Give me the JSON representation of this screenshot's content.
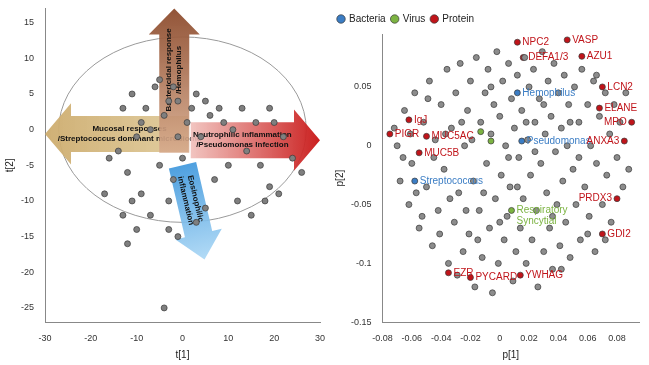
{
  "chart_data": [
    {
      "type": "scatter",
      "x_label": "t[1]",
      "y_label": "t[2]",
      "xlim": [
        -30,
        30
      ],
      "xticks": [
        -30,
        -20,
        -10,
        0,
        10,
        20,
        30
      ],
      "ylim": [
        -27,
        17
      ],
      "yticks": [
        -25,
        -20,
        -15,
        -10,
        -5,
        0,
        5,
        10,
        15
      ],
      "grid": false,
      "ellipse": {
        "center": [
          0,
          0
        ],
        "radii": [
          27,
          13
        ]
      },
      "annotations": [
        {
          "text": [
            "Mucosal responses",
            "/Streptococcus dominant microbiome"
          ]
        },
        {
          "text": [
            "Bactericidal response",
            "/Hemophilus"
          ]
        },
        {
          "text": [
            "Neutrophilic inflammation",
            "/Pseudomonas Infection"
          ]
        },
        {
          "text": [
            "Eosinophilic",
            "inflammation"
          ]
        }
      ],
      "series": [
        {
          "color": "#7f7f7f",
          "points": [
            [
              -6,
              6
            ],
            [
              -5,
              7
            ],
            [
              -2,
              6
            ],
            [
              -1,
              4
            ],
            [
              -3,
              4
            ],
            [
              2,
              3
            ],
            [
              -8,
              3
            ],
            [
              -11,
              5
            ],
            [
              -13,
              3
            ],
            [
              -9,
              1
            ],
            [
              -7,
              0
            ],
            [
              -4,
              2
            ],
            [
              3,
              5
            ],
            [
              5,
              4
            ],
            [
              1,
              1
            ],
            [
              -1,
              -1
            ],
            [
              4,
              -1
            ],
            [
              6,
              2
            ],
            [
              8,
              3
            ],
            [
              9,
              1
            ],
            [
              11,
              0
            ],
            [
              13,
              3
            ],
            [
              16,
              1
            ],
            [
              19,
              3
            ],
            [
              20,
              1
            ],
            [
              22,
              -1
            ],
            [
              24,
              -4
            ],
            [
              26,
              -6
            ],
            [
              19,
              -8
            ],
            [
              17,
              -5
            ],
            [
              14,
              -3
            ],
            [
              10,
              -5
            ],
            [
              7,
              -7
            ],
            [
              12,
              -10
            ],
            [
              -10,
              -1
            ],
            [
              -14,
              -3
            ],
            [
              -12,
              -6
            ],
            [
              -16,
              -4
            ],
            [
              -17,
              -9
            ],
            [
              -9,
              -9
            ],
            [
              -7,
              -12
            ],
            [
              -3,
              -10
            ],
            [
              -2,
              -7
            ],
            [
              -5,
              -5
            ],
            [
              0,
              -4
            ],
            [
              5,
              -11
            ],
            [
              3,
              -13
            ],
            [
              -1,
              -15
            ],
            [
              -3,
              -14
            ],
            [
              -10,
              -14
            ],
            [
              -12,
              -16
            ],
            [
              -4,
              -25
            ],
            [
              18,
              -10
            ],
            [
              21,
              -9
            ],
            [
              15,
              -12
            ],
            [
              -13,
              -12
            ],
            [
              -11,
              -10
            ]
          ]
        }
      ]
    },
    {
      "type": "scatter",
      "x_label": "p[1]",
      "y_label": "p[2]",
      "xlim": [
        -0.08,
        0.095
      ],
      "xticks": [
        -0.08,
        -0.06,
        -0.04,
        -0.02,
        0,
        0.02,
        0.04,
        0.06,
        0.08
      ],
      "ylim": [
        -0.15,
        0.095
      ],
      "yticks": [
        -0.15,
        -0.1,
        -0.05,
        0,
        0.05
      ],
      "grid": false,
      "legend": "top-left",
      "series": [
        {
          "color": "#8c8c8c",
          "points": [
            [
              -0.07,
              0.0
            ],
            [
              -0.068,
              -0.03
            ],
            [
              -0.065,
              0.03
            ],
            [
              -0.062,
              -0.05
            ],
            [
              -0.06,
              -0.015
            ],
            [
              -0.058,
              0.045
            ],
            [
              -0.055,
              -0.07
            ],
            [
              -0.052,
              0.02
            ],
            [
              -0.05,
              -0.035
            ],
            [
              -0.048,
              0.055
            ],
            [
              -0.046,
              -0.085
            ],
            [
              -0.044,
              0.005
            ],
            [
              -0.042,
              -0.055
            ],
            [
              -0.04,
              0.035
            ],
            [
              -0.038,
              -0.02
            ],
            [
              -0.036,
              0.065
            ],
            [
              -0.035,
              -0.1
            ],
            [
              -0.033,
              0.015
            ],
            [
              -0.031,
              -0.065
            ],
            [
              -0.03,
              0.045
            ],
            [
              -0.028,
              -0.04
            ],
            [
              -0.027,
              0.07
            ],
            [
              -0.025,
              -0.09
            ],
            [
              -0.024,
              0.0
            ],
            [
              -0.022,
              0.03
            ],
            [
              -0.021,
              -0.075
            ],
            [
              -0.02,
              0.055
            ],
            [
              -0.018,
              -0.03
            ],
            [
              -0.017,
              -0.12
            ],
            [
              -0.016,
              0.075
            ],
            [
              -0.014,
              -0.055
            ],
            [
              -0.013,
              0.02
            ],
            [
              -0.012,
              -0.095
            ],
            [
              -0.01,
              0.045
            ],
            [
              -0.009,
              -0.015
            ],
            [
              -0.008,
              0.065
            ],
            [
              -0.007,
              -0.07
            ],
            [
              -0.006,
              0.01
            ],
            [
              -0.005,
              -0.125
            ],
            [
              -0.004,
              0.035
            ],
            [
              -0.003,
              -0.045
            ],
            [
              -0.002,
              0.08
            ],
            [
              -0.001,
              -0.1
            ],
            [
              0.0,
              0.025
            ],
            [
              0.001,
              -0.025
            ],
            [
              0.002,
              0.055
            ],
            [
              0.003,
              -0.08
            ],
            [
              0.004,
              0.0
            ],
            [
              0.005,
              -0.06
            ],
            [
              0.006,
              0.07
            ],
            [
              0.007,
              -0.035
            ],
            [
              0.008,
              0.04
            ],
            [
              0.009,
              -0.115
            ],
            [
              0.01,
              0.015
            ],
            [
              0.011,
              -0.09
            ],
            [
              0.012,
              0.06
            ],
            [
              0.013,
              -0.01
            ],
            [
              0.014,
              -0.07
            ],
            [
              0.015,
              0.03
            ],
            [
              0.016,
              -0.045
            ],
            [
              0.017,
              0.075
            ],
            [
              0.018,
              -0.1
            ],
            [
              0.019,
              0.005
            ],
            [
              0.02,
              0.05
            ],
            [
              0.021,
              -0.025
            ],
            [
              0.022,
              -0.08
            ],
            [
              0.023,
              0.065
            ],
            [
              0.024,
              0.02
            ],
            [
              0.025,
              -0.055
            ],
            [
              0.026,
              -0.12
            ],
            [
              0.027,
              0.04
            ],
            [
              0.028,
              -0.015
            ],
            [
              0.029,
              0.08
            ],
            [
              0.03,
              -0.09
            ],
            [
              0.031,
              0.01
            ],
            [
              0.032,
              -0.04
            ],
            [
              0.033,
              0.055
            ],
            [
              0.034,
              -0.07
            ],
            [
              0.035,
              0.025
            ],
            [
              0.036,
              -0.105
            ],
            [
              0.037,
              0.07
            ],
            [
              0.038,
              -0.005
            ],
            [
              0.039,
              -0.05
            ],
            [
              0.04,
              0.045
            ],
            [
              0.041,
              -0.085
            ],
            [
              0.042,
              0.015
            ],
            [
              0.043,
              -0.03
            ],
            [
              0.044,
              0.06
            ],
            [
              0.045,
              -0.065
            ],
            [
              0.046,
              0.0
            ],
            [
              0.047,
              0.035
            ],
            [
              0.048,
              -0.095
            ],
            [
              0.05,
              -0.02
            ],
            [
              0.051,
              0.05
            ],
            [
              0.052,
              -0.05
            ],
            [
              0.054,
              0.02
            ],
            [
              0.055,
              -0.08
            ],
            [
              0.056,
              0.065
            ],
            [
              0.058,
              -0.035
            ],
            [
              0.06,
              0.035
            ],
            [
              0.061,
              -0.06
            ],
            [
              0.062,
              0.0
            ],
            [
              0.064,
              0.055
            ],
            [
              0.065,
              -0.09
            ],
            [
              0.066,
              -0.015
            ],
            [
              0.068,
              0.025
            ],
            [
              0.07,
              -0.05
            ],
            [
              0.072,
              0.045
            ],
            [
              0.073,
              -0.025
            ],
            [
              0.075,
              0.01
            ],
            [
              0.076,
              -0.065
            ],
            [
              0.078,
              0.035
            ],
            [
              0.08,
              -0.01
            ],
            [
              0.082,
              0.02
            ],
            [
              0.084,
              -0.035
            ],
            [
              0.086,
              0.045
            ],
            [
              0.088,
              -0.02
            ],
            [
              -0.072,
              0.015
            ],
            [
              -0.066,
              -0.01
            ],
            [
              -0.061,
              0.01
            ],
            [
              -0.057,
              -0.04
            ],
            [
              -0.053,
              -0.06
            ],
            [
              -0.049,
              0.04
            ],
            [
              -0.045,
              -0.01
            ],
            [
              -0.041,
              -0.075
            ],
            [
              -0.037,
              0.01
            ],
            [
              -0.034,
              -0.045
            ],
            [
              -0.029,
              -0.11
            ],
            [
              -0.026,
              0.02
            ],
            [
              -0.023,
              -0.055
            ],
            [
              -0.019,
              0.005
            ],
            [
              -0.015,
              -0.08
            ],
            [
              -0.011,
              -0.04
            ],
            [
              -0.006,
              0.05
            ],
            [
              0.0,
              -0.065
            ],
            [
              0.006,
              -0.01
            ],
            [
              0.012,
              -0.035
            ],
            [
              0.018,
              0.02
            ],
            [
              0.024,
              -0.005
            ],
            [
              0.03,
              0.035
            ],
            [
              0.036,
              -0.06
            ],
            [
              0.042,
              -0.105
            ],
            [
              0.048,
              0.02
            ],
            [
              0.054,
              -0.01
            ],
            [
              0.06,
              -0.075
            ],
            [
              0.066,
              0.06
            ],
            [
              0.072,
              -0.08
            ]
          ]
        },
        {
          "name": "Bacteria",
          "color": "#3b7dc4",
          "points": [
            [
              0.012,
              0.045
            ],
            [
              -0.058,
              -0.03
            ],
            [
              0.015,
              0.004
            ]
          ],
          "labels": [
            "Hemophilus",
            "Streptococcus",
            "Pseudomonas"
          ]
        },
        {
          "name": "Virus",
          "color": "#7cb342",
          "points": [
            [
              0.008,
              -0.055
            ],
            [
              -0.013,
              0.012
            ],
            [
              -0.006,
              0.004
            ]
          ],
          "labels": [
            [
              "Respiratory",
              "Syncytial"
            ],
            null,
            null
          ]
        },
        {
          "name": "Protein",
          "color": "#c0141a",
          "points": [
            [
              0.012,
              0.088
            ],
            [
              0.016,
              0.075
            ],
            [
              0.046,
              0.09
            ],
            [
              0.056,
              0.076
            ],
            [
              0.07,
              0.05
            ],
            [
              0.068,
              0.032
            ],
            [
              0.09,
              0.02
            ],
            [
              0.085,
              0.004
            ],
            [
              0.08,
              -0.045
            ],
            [
              0.07,
              -0.075
            ],
            [
              -0.075,
              0.01
            ],
            [
              -0.062,
              0.022
            ],
            [
              -0.05,
              0.008
            ],
            [
              -0.055,
              -0.006
            ],
            [
              -0.035,
              -0.108
            ],
            [
              -0.02,
              -0.112
            ],
            [
              0.014,
              -0.11
            ]
          ],
          "labels": [
            "NPC2",
            "DEFA1/3",
            "VASP",
            "AZU1",
            "LCN2",
            "ELANE",
            "MPO",
            "ANXA3",
            "PRDX3",
            "GDI2",
            "PIGR",
            "IgJ",
            "MUC5AC",
            "MUC5B",
            "EZR",
            "PYCARD",
            "YWHAG"
          ]
        }
      ]
    }
  ]
}
